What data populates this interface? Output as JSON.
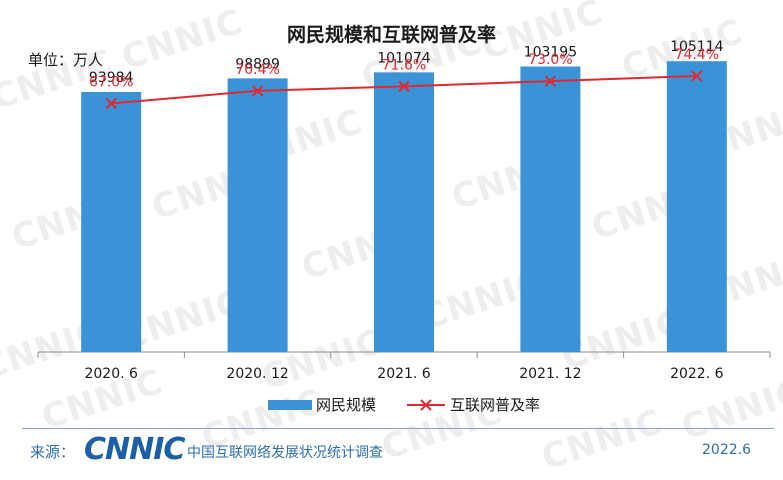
{
  "watermark_text": "CNNIC",
  "chart_data": {
    "type": "bar",
    "title": "网民规模和互联网普及率",
    "unit_label": "单位：万人",
    "categories": [
      "2020. 6",
      "2020. 12",
      "2021. 6",
      "2021. 12",
      "2022. 6"
    ],
    "series": [
      {
        "name": "网民规模",
        "kind": "bar",
        "color": "#3a93d6",
        "values": [
          93984,
          98899,
          101074,
          103195,
          105114
        ],
        "value_labels": [
          "93984",
          "98899",
          "101074",
          "103195",
          "105114"
        ]
      },
      {
        "name": "互联网普及率",
        "kind": "line",
        "color": "#e0292f",
        "values": [
          67.0,
          70.4,
          71.6,
          73.0,
          74.4
        ],
        "value_labels": [
          "67.0%",
          "70.4%",
          "71.6%",
          "73.0%",
          "74.4%"
        ]
      }
    ],
    "ylim": [
      0,
      120000
    ],
    "y2lim": [
      0,
      100
    ],
    "grid": false,
    "legend": "bottom-center"
  },
  "footer": {
    "source_label": "来源：",
    "logo_text": "CNNIC",
    "source_name": "中国互联网络发展状况统计调查",
    "date": "2022.6"
  }
}
